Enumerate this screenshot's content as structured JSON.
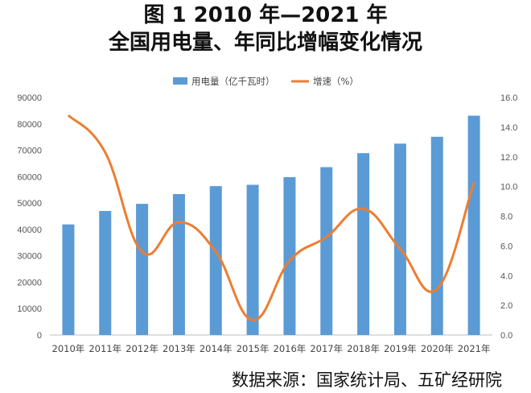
{
  "title": "图 1 2010 年—2021 年",
  "subtitle": "全国用电量、年同比增幅变化情况",
  "source": "数据来源：国家统计局、五矿经研院",
  "chart_data": {
    "type": "bar+line",
    "categories": [
      "2010年",
      "2011年",
      "2012年",
      "2013年",
      "2014年",
      "2015年",
      "2016年",
      "2017年",
      "2018年",
      "2019年",
      "2020年",
      "2021年"
    ],
    "series": [
      {
        "name": "用电量（亿千瓦时）",
        "type": "bar",
        "axis": "left",
        "color": "#5b9bd5",
        "values": [
          41900,
          47000,
          49700,
          53400,
          56400,
          56900,
          59800,
          63600,
          68900,
          72500,
          75100,
          83100
        ]
      },
      {
        "name": "增速（%）",
        "type": "line",
        "axis": "right",
        "color": "#ed7d31",
        "values": [
          14.8,
          12.3,
          5.6,
          7.6,
          5.6,
          1.0,
          5.0,
          6.6,
          8.5,
          5.8,
          3.1,
          10.3
        ]
      }
    ],
    "y_left": {
      "min": 0,
      "max": 90000,
      "ticks": [
        "0",
        "10000",
        "20000",
        "30000",
        "40000",
        "50000",
        "60000",
        "70000",
        "80000",
        "90000"
      ]
    },
    "y_right": {
      "min": 0,
      "max": 16,
      "ticks": [
        "0.0",
        "2.0",
        "4.0",
        "6.0",
        "8.0",
        "10.0",
        "12.0",
        "14.0",
        "16.0"
      ]
    },
    "grid": false,
    "legend_position": "top-center"
  }
}
